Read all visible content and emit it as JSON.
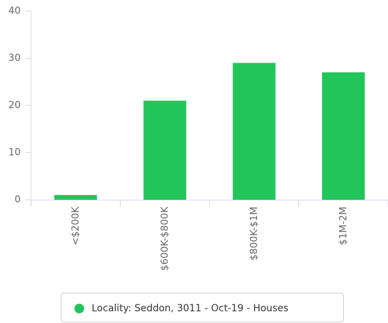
{
  "chart_data": {
    "type": "bar",
    "categories": [
      "<$200K",
      "$600K-$800K",
      "$800K-$1M",
      "$1M-2M"
    ],
    "series": [
      {
        "name": "Locality: Seddon, 3011 - Oct-19 - Houses",
        "color": "#22c55a",
        "values": [
          1,
          21,
          29,
          27
        ]
      }
    ],
    "ylim": [
      0,
      40
    ],
    "yticks": [
      0,
      10,
      20,
      30,
      40
    ],
    "legend": "bottom"
  }
}
